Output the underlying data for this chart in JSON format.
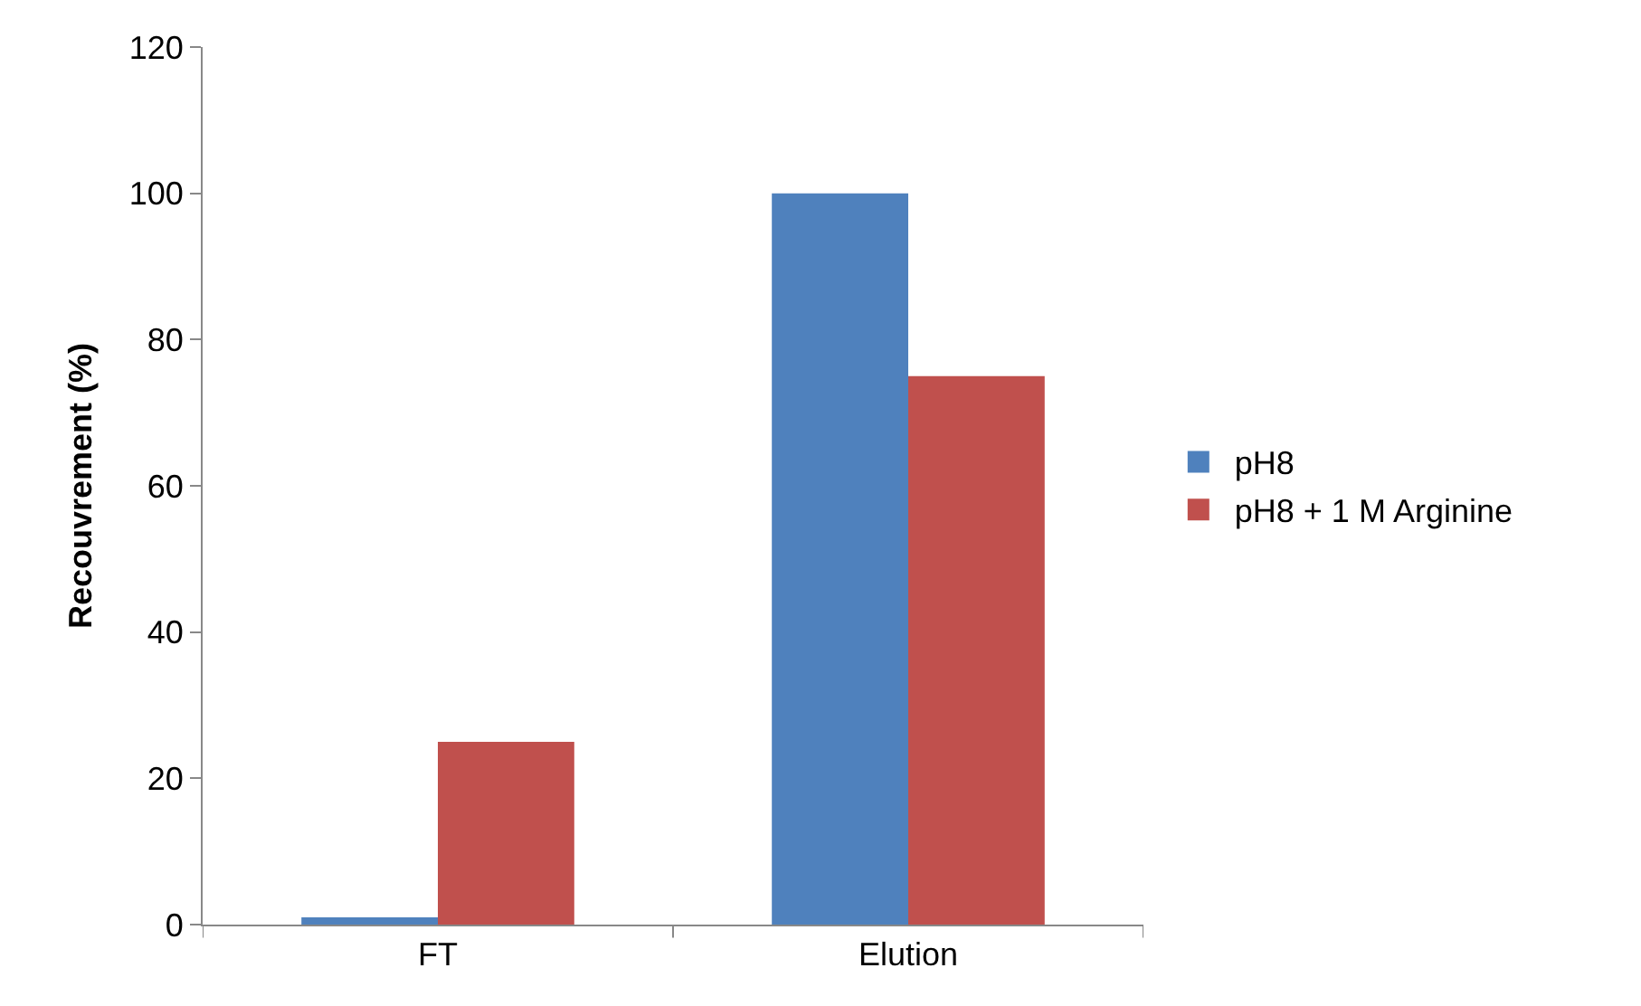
{
  "chart_data": {
    "type": "bar",
    "ylabel": "Recouvrement (%)",
    "categories": [
      "FT",
      "Elution"
    ],
    "series": [
      {
        "name": "pH8",
        "color": "#4f81bd",
        "values": [
          1,
          100
        ]
      },
      {
        "name": "pH8 + 1 M Arginine",
        "color": "#c0504d",
        "values": [
          25,
          75
        ]
      }
    ],
    "ylim": [
      0,
      120
    ],
    "yticks": [
      0,
      20,
      40,
      60,
      80,
      100,
      120
    ],
    "legend": "right"
  }
}
